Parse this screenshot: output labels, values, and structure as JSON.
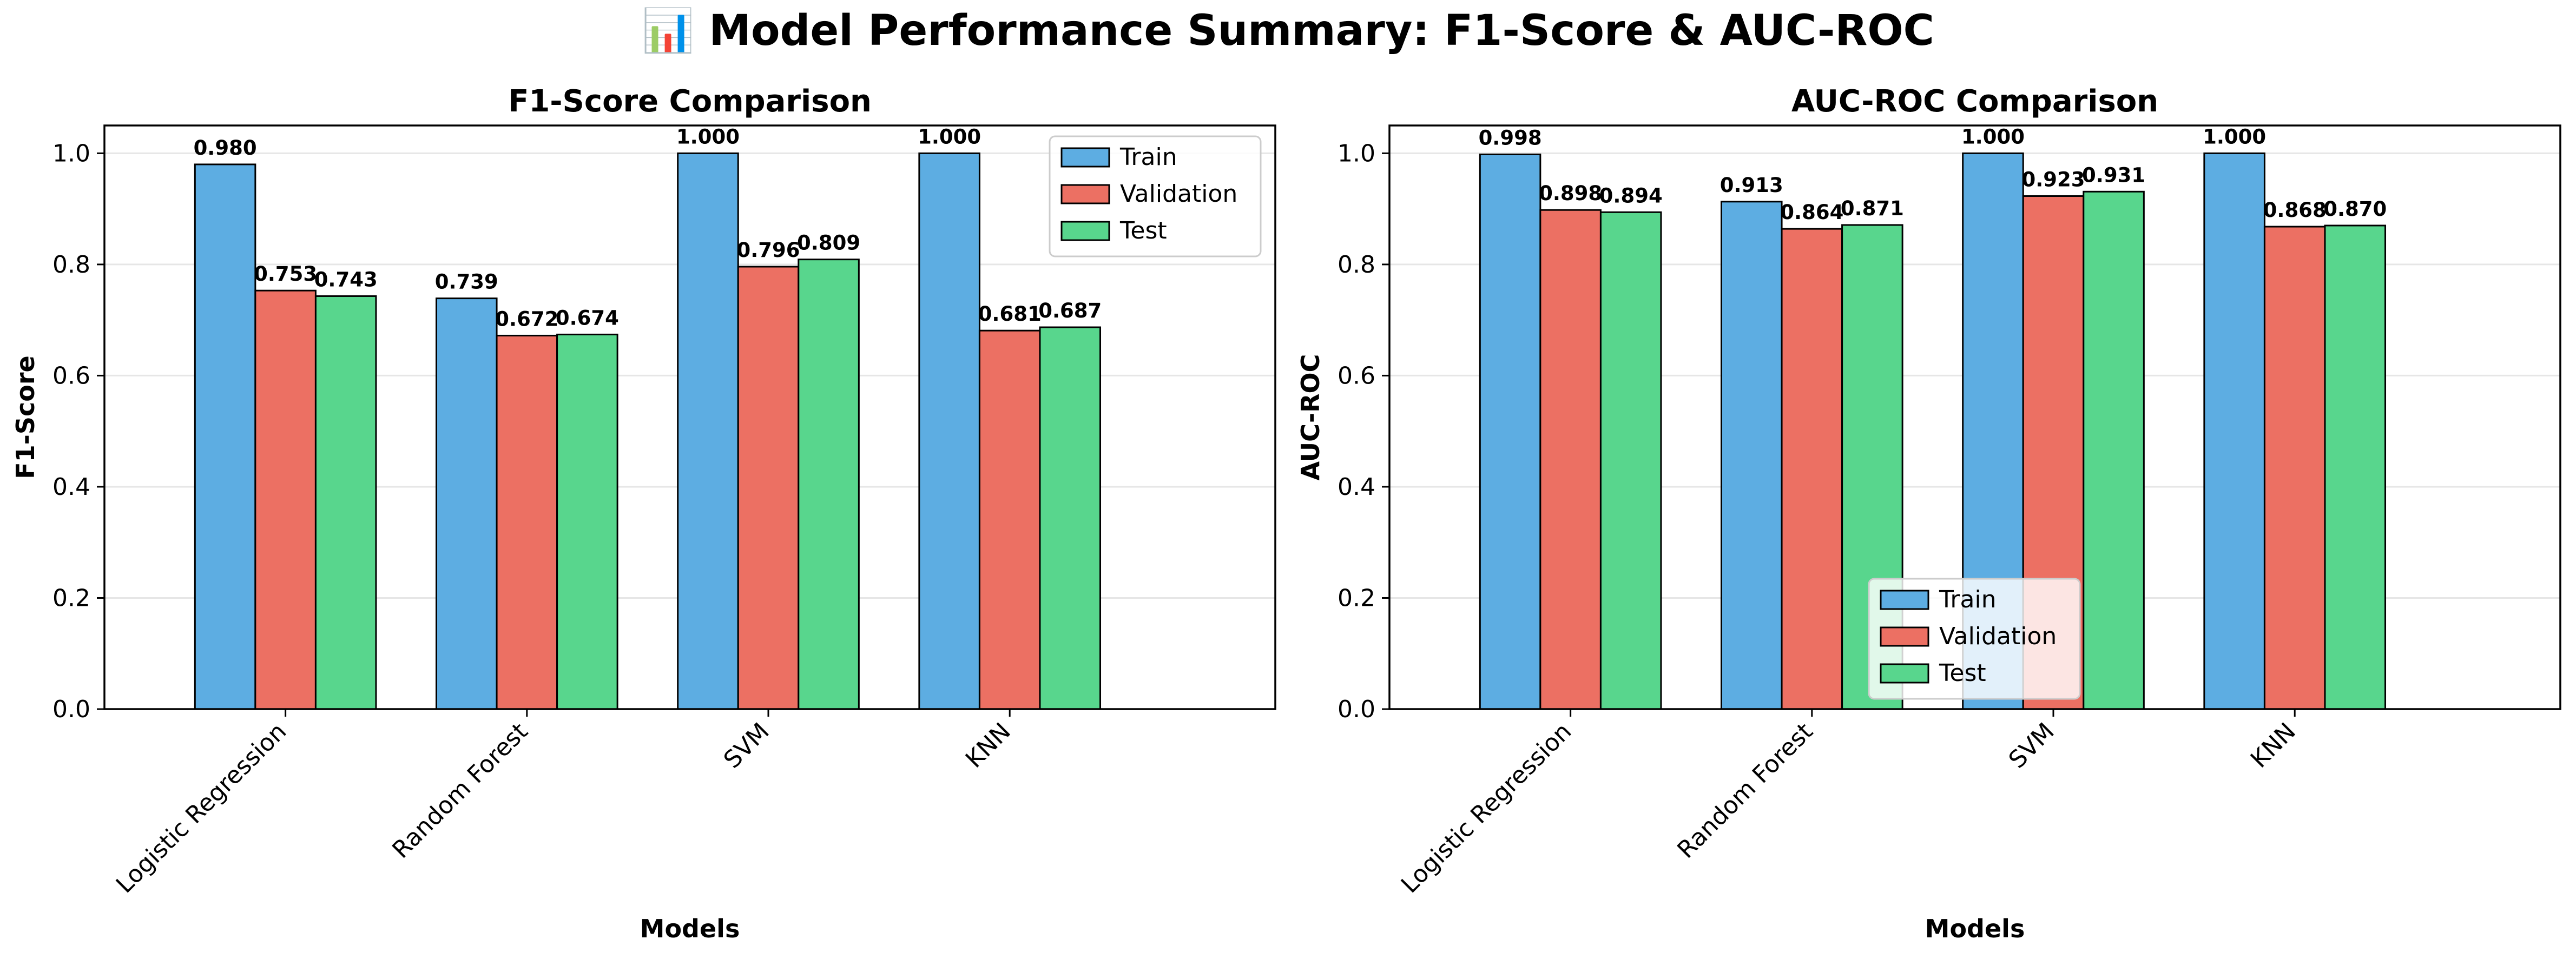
{
  "figure": {
    "title": "📊 Model Performance Summary: F1-Score & AUC-ROC"
  },
  "colors": {
    "Train": "#5DADE2",
    "Validation": "#EC7063",
    "Test": "#58D68D",
    "grid": "#e6e6e6",
    "edge": "#000000"
  },
  "chart_data": [
    {
      "type": "bar",
      "title": "F1-Score Comparison",
      "xlabel": "Models",
      "ylabel": "F1-Score",
      "categories": [
        "Logistic Regression",
        "Random Forest",
        "SVM",
        "KNN"
      ],
      "series": [
        {
          "name": "Train",
          "values": [
            0.98,
            0.739,
            1.0,
            1.0
          ],
          "labels": [
            "0.980",
            "0.739",
            "1.000",
            "1.000"
          ]
        },
        {
          "name": "Validation",
          "values": [
            0.753,
            0.672,
            0.796,
            0.681
          ],
          "labels": [
            "0.753",
            "0.672",
            "0.796",
            "0.681"
          ]
        },
        {
          "name": "Test",
          "values": [
            0.743,
            0.674,
            0.809,
            0.687
          ],
          "labels": [
            "0.743",
            "0.674",
            "0.809",
            "0.687"
          ]
        }
      ],
      "ylim": [
        0,
        1.05
      ],
      "yticks": [
        0.0,
        0.2,
        0.4,
        0.6,
        0.8,
        1.0
      ],
      "ytick_labels": [
        "0.0",
        "0.2",
        "0.4",
        "0.6",
        "0.8",
        "1.0"
      ],
      "grid": "y",
      "legend": "upper right"
    },
    {
      "type": "bar",
      "title": "AUC-ROC Comparison",
      "xlabel": "Models",
      "ylabel": "AUC-ROC",
      "categories": [
        "Logistic Regression",
        "Random Forest",
        "SVM",
        "KNN"
      ],
      "series": [
        {
          "name": "Train",
          "values": [
            0.998,
            0.913,
            1.0,
            1.0
          ],
          "labels": [
            "0.998",
            "0.913",
            "1.000",
            "1.000"
          ]
        },
        {
          "name": "Validation",
          "values": [
            0.898,
            0.864,
            0.923,
            0.868
          ],
          "labels": [
            "0.898",
            "0.864",
            "0.923",
            "0.868"
          ]
        },
        {
          "name": "Test",
          "values": [
            0.894,
            0.871,
            0.931,
            0.87
          ],
          "labels": [
            "0.894",
            "0.871",
            "0.931",
            "0.870"
          ]
        }
      ],
      "ylim": [
        0,
        1.05
      ],
      "yticks": [
        0.0,
        0.2,
        0.4,
        0.6,
        0.8,
        1.0
      ],
      "ytick_labels": [
        "0.0",
        "0.2",
        "0.4",
        "0.6",
        "0.8",
        "1.0"
      ],
      "grid": "y",
      "legend": "lower center"
    }
  ]
}
